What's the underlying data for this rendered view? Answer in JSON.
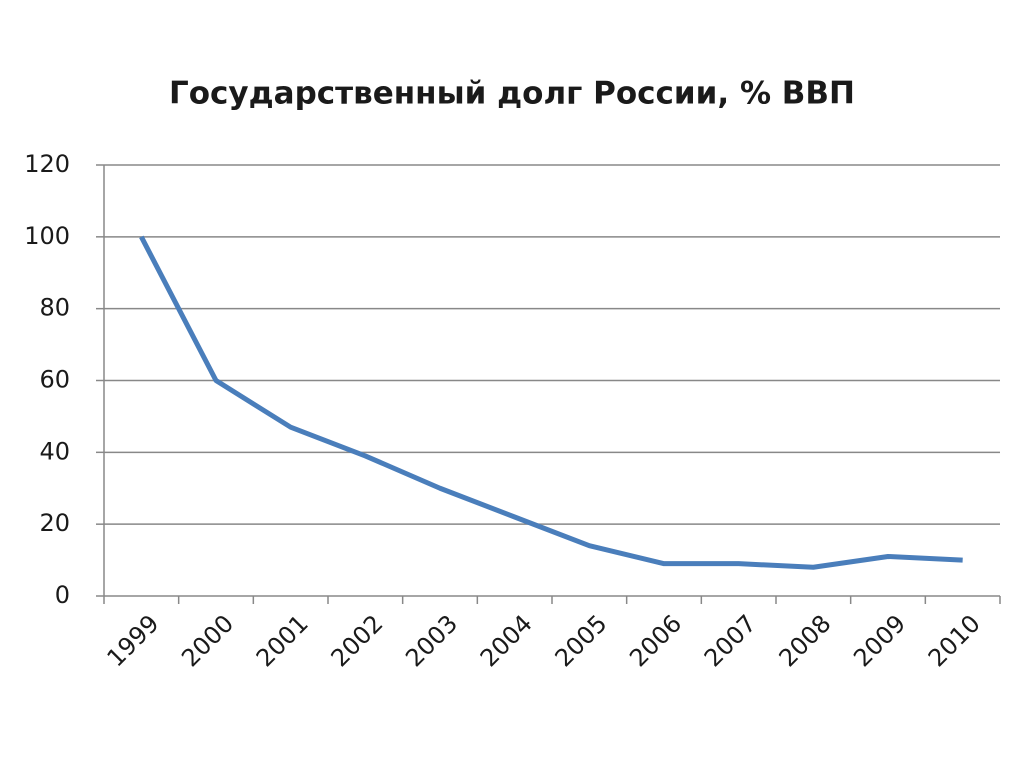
{
  "chart_data": {
    "type": "line",
    "title": "Государственный долг России, % ВВП",
    "categories": [
      "1999",
      "2000",
      "2001",
      "2002",
      "2003",
      "2004",
      "2005",
      "2006",
      "2007",
      "2008",
      "2009",
      "2010"
    ],
    "values": [
      100,
      60,
      47,
      39,
      30,
      22,
      14,
      9,
      9,
      8,
      11,
      10
    ],
    "color": "#4a7ebb",
    "ylim": [
      0,
      120
    ],
    "yticks": [
      0,
      20,
      40,
      60,
      80,
      100,
      120
    ],
    "grid": true
  }
}
